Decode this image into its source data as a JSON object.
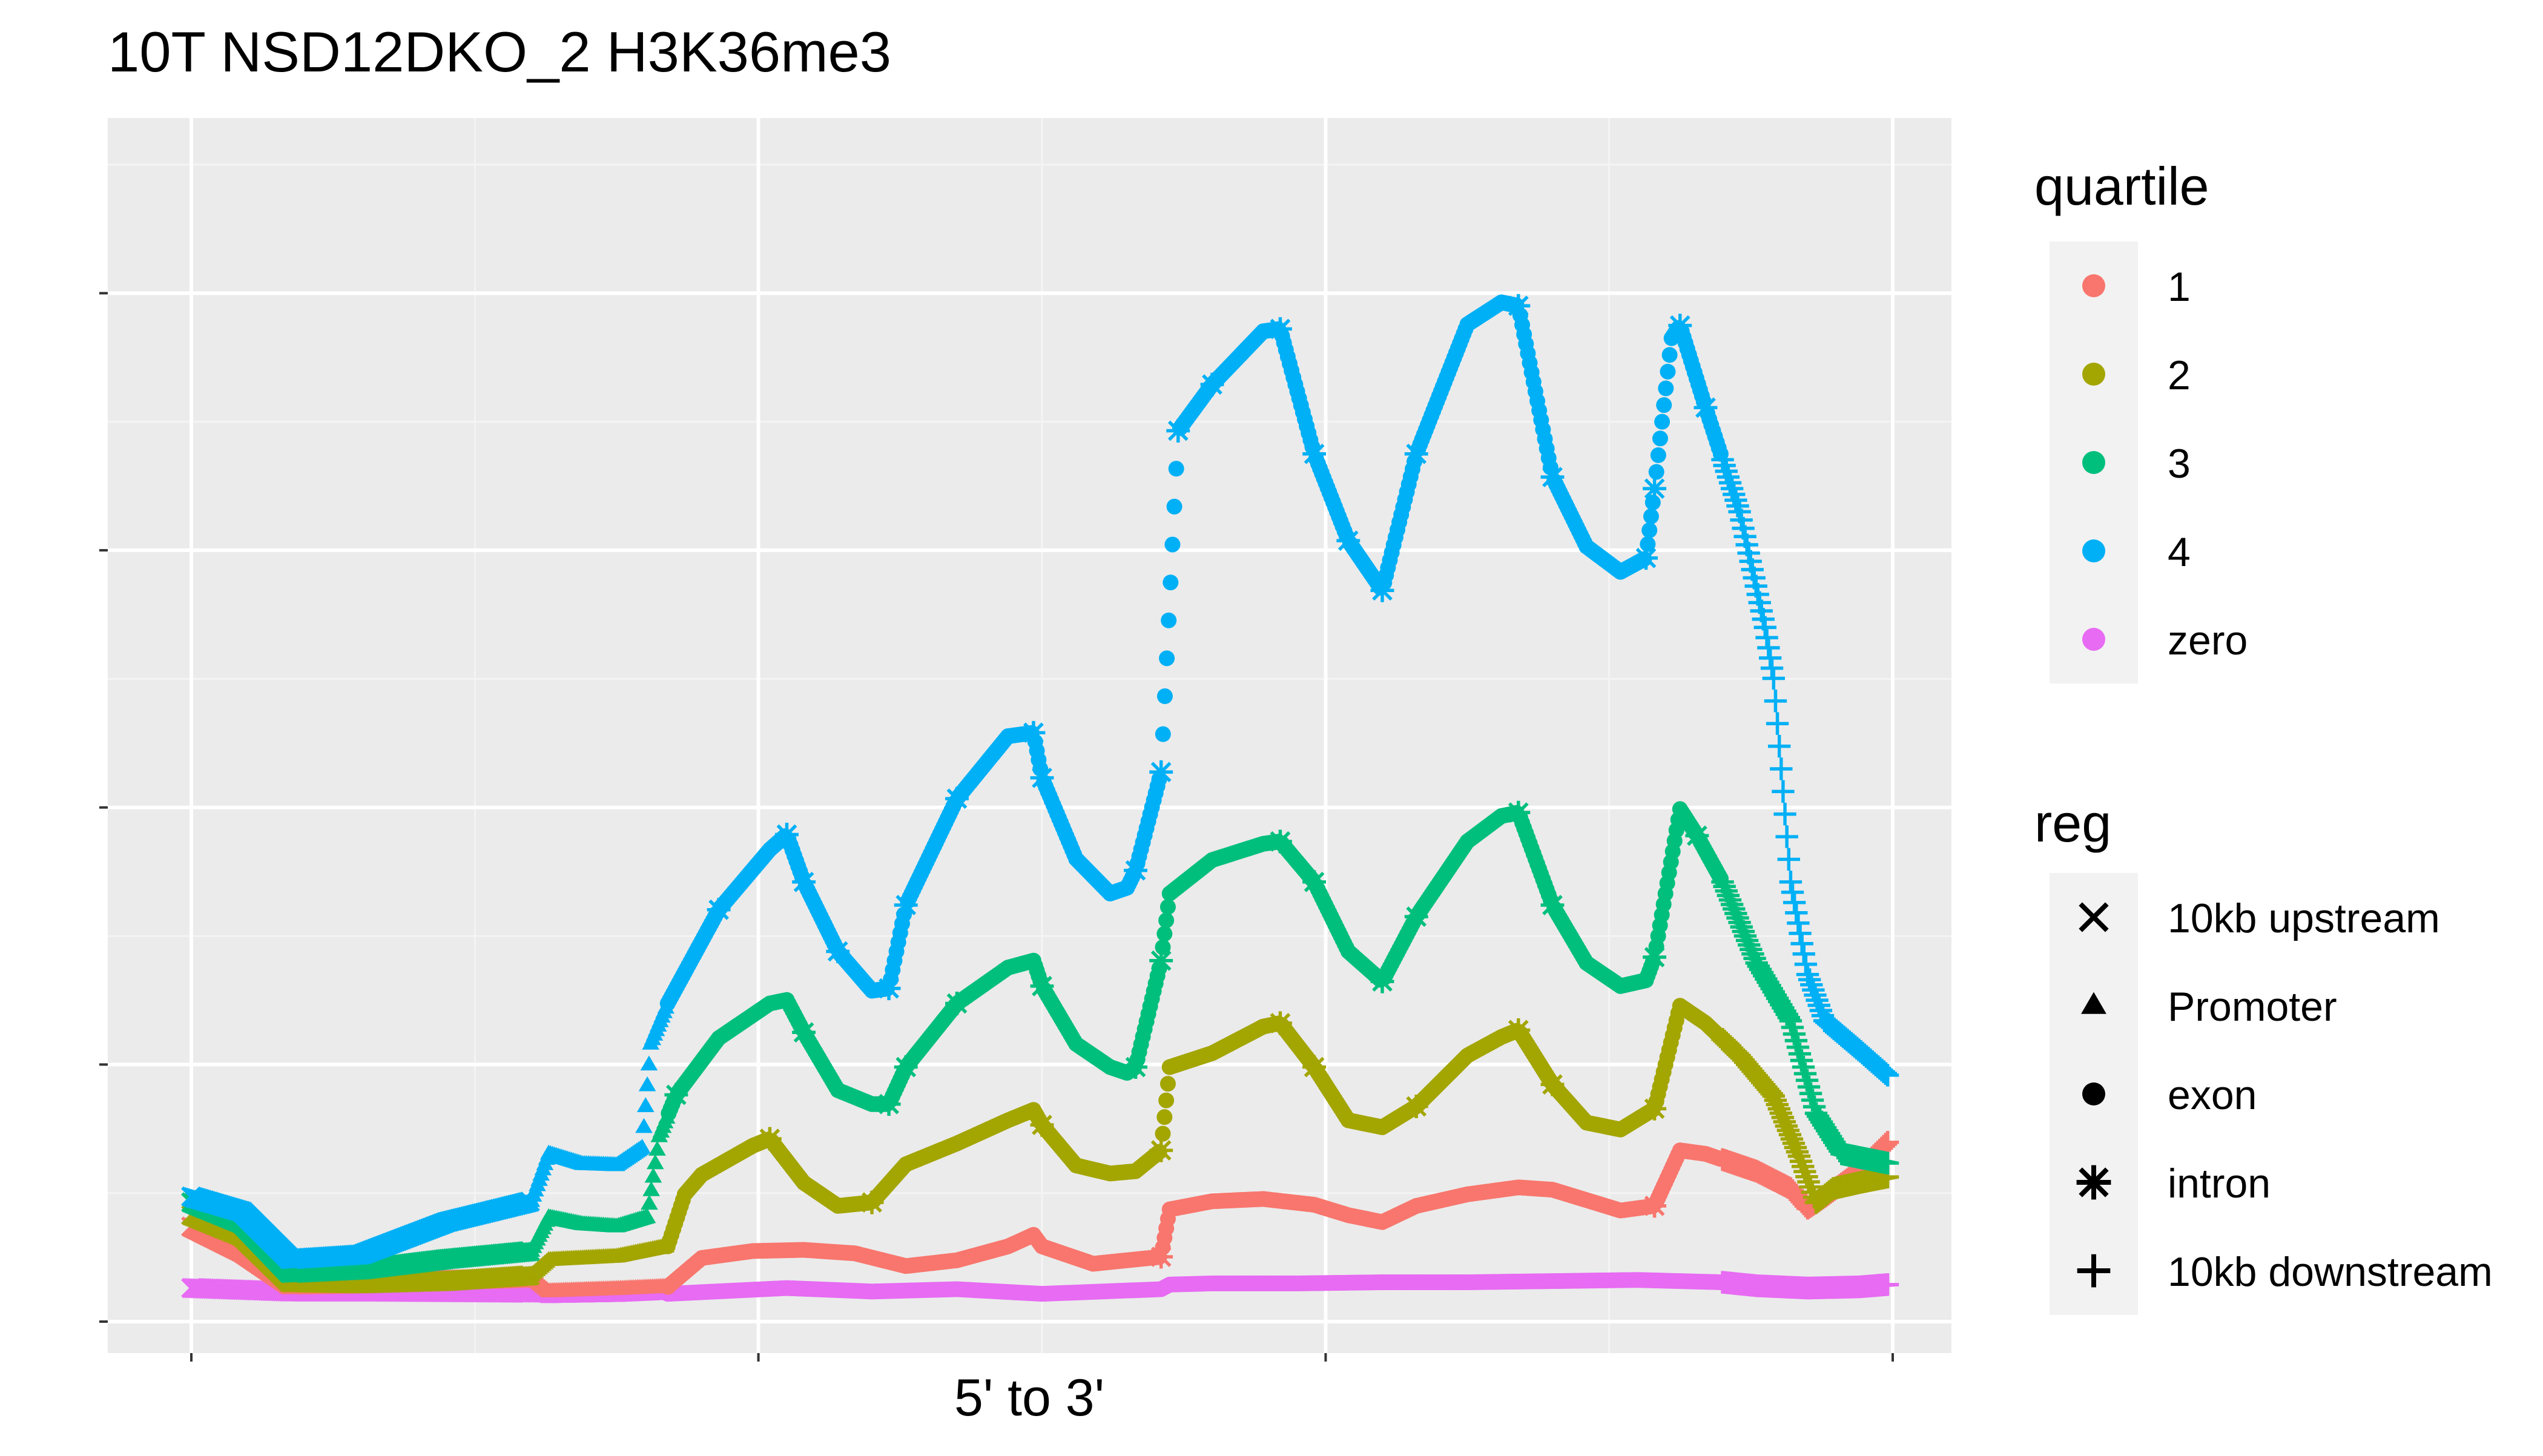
{
  "colors": {
    "panel": "#EBEBEB",
    "grid_major": "#FFFFFF",
    "grid_minor": "#F4F4F4",
    "legend_key": "#F2F2F2",
    "text": "#000000"
  },
  "chart_data": {
    "type": "scatter",
    "title": "10T NSD12DKO_2 H3K36me3",
    "subtitle": "",
    "xlabel": "5' to 3'",
    "ylabel": "",
    "x_tick_labels": [],
    "y_tick_labels": [],
    "xlim": [
      0,
      100
    ],
    "ylim": [
      0,
      100
    ],
    "grid": true,
    "legend_position": "right",
    "regions": [
      {
        "name": "10kb upstream",
        "shape": "x",
        "x_range": [
          0,
          20
        ]
      },
      {
        "name": "Promoter",
        "shape": "triangle",
        "x_range": [
          20,
          28
        ]
      },
      {
        "name": "exon",
        "shape": "circle",
        "x_range": [
          28,
          90
        ]
      },
      {
        "name": "intron",
        "shape": "asterisk",
        "x_range": [
          28,
          90
        ]
      },
      {
        "name": "10kb downstream",
        "shape": "plus",
        "x_range": [
          90,
          100
        ]
      }
    ],
    "series": [
      {
        "name": "1",
        "color": "#F8766D",
        "points": [
          [
            0,
            8.2
          ],
          [
            3,
            6
          ],
          [
            5.8,
            3.2
          ],
          [
            10,
            3.3
          ],
          [
            15,
            3.6
          ],
          [
            20,
            3.8
          ],
          [
            21,
            2.6
          ],
          [
            25,
            2.8
          ],
          [
            28,
            3
          ],
          [
            30,
            5.5
          ],
          [
            33,
            6.1
          ],
          [
            36,
            6.2
          ],
          [
            39,
            5.9
          ],
          [
            42,
            4.8
          ],
          [
            45,
            5.3
          ],
          [
            48,
            6.5
          ],
          [
            49.5,
            7.5
          ],
          [
            50,
            6.5
          ],
          [
            53,
            5
          ],
          [
            57,
            5.6
          ],
          [
            57.5,
            9.7
          ],
          [
            60,
            10.4
          ],
          [
            63,
            10.6
          ],
          [
            66,
            10.1
          ],
          [
            68,
            9.2
          ],
          [
            70,
            8.6
          ],
          [
            72,
            10
          ],
          [
            75,
            11
          ],
          [
            78,
            11.6
          ],
          [
            80,
            11.4
          ],
          [
            82,
            10.5
          ],
          [
            84,
            9.6
          ],
          [
            86,
            10
          ],
          [
            87.5,
            14.8
          ],
          [
            89,
            14.5
          ],
          [
            92,
            13
          ],
          [
            94,
            11.5
          ],
          [
            95,
            9.8
          ],
          [
            96,
            10.8
          ],
          [
            98,
            13
          ],
          [
            99.7,
            15.5
          ]
        ]
      },
      {
        "name": "2",
        "color": "#A3A500",
        "points": [
          [
            0,
            9.2
          ],
          [
            3,
            7.4
          ],
          [
            5.8,
            3.4
          ],
          [
            10,
            3.3
          ],
          [
            15,
            3.5
          ],
          [
            20,
            4
          ],
          [
            21,
            5.3
          ],
          [
            25,
            5.6
          ],
          [
            28,
            6.5
          ],
          [
            29,
            11
          ],
          [
            30,
            12.7
          ],
          [
            33,
            15.2
          ],
          [
            34,
            15.8
          ],
          [
            36,
            12
          ],
          [
            38,
            10
          ],
          [
            40,
            10.3
          ],
          [
            42,
            13.6
          ],
          [
            45,
            15.4
          ],
          [
            48,
            17.4
          ],
          [
            49.5,
            18.3
          ],
          [
            50,
            17
          ],
          [
            52,
            13.5
          ],
          [
            54,
            12.8
          ],
          [
            55.5,
            13
          ],
          [
            57,
            14.8
          ],
          [
            57.5,
            22
          ],
          [
            60,
            23.2
          ],
          [
            63,
            25.5
          ],
          [
            64,
            25.8
          ],
          [
            66,
            22
          ],
          [
            68,
            17.4
          ],
          [
            70,
            16.8
          ],
          [
            72,
            18.6
          ],
          [
            75,
            23
          ],
          [
            77,
            24.6
          ],
          [
            78,
            25.2
          ],
          [
            80,
            20.5
          ],
          [
            82,
            17.2
          ],
          [
            84,
            16.6
          ],
          [
            86,
            18.4
          ],
          [
            87.5,
            27.3
          ],
          [
            89,
            25.8
          ],
          [
            91,
            23
          ],
          [
            93,
            19.5
          ],
          [
            94.5,
            14.3
          ],
          [
            95.5,
            10.3
          ],
          [
            96.5,
            11.5
          ],
          [
            98,
            12
          ],
          [
            99.7,
            12.5
          ]
        ]
      },
      {
        "name": "3",
        "color": "#00BF7D",
        "points": [
          [
            0,
            10.3
          ],
          [
            3,
            8.5
          ],
          [
            5.8,
            4.2
          ],
          [
            10,
            4.5
          ],
          [
            15,
            5.4
          ],
          [
            20,
            6.1
          ],
          [
            21,
            9
          ],
          [
            23,
            8.4
          ],
          [
            25,
            8.2
          ],
          [
            26.8,
            9
          ],
          [
            27.5,
            16
          ],
          [
            28.5,
            19.6
          ],
          [
            31,
            24.5
          ],
          [
            34,
            27.5
          ],
          [
            35,
            27.8
          ],
          [
            36,
            25
          ],
          [
            38,
            20
          ],
          [
            40,
            18.8
          ],
          [
            41,
            18.8
          ],
          [
            42,
            22
          ],
          [
            45,
            27.5
          ],
          [
            48,
            30.6
          ],
          [
            49.5,
            31.2
          ],
          [
            50,
            29
          ],
          [
            52,
            24
          ],
          [
            54,
            22
          ],
          [
            55,
            21.5
          ],
          [
            55.5,
            22
          ],
          [
            57,
            31.2
          ],
          [
            57.5,
            37
          ],
          [
            60,
            39.9
          ],
          [
            63,
            41.3
          ],
          [
            64,
            41.5
          ],
          [
            66,
            38
          ],
          [
            68,
            32
          ],
          [
            70,
            29.4
          ],
          [
            72,
            35
          ],
          [
            75,
            41.5
          ],
          [
            77,
            43.7
          ],
          [
            78,
            44
          ],
          [
            80,
            36
          ],
          [
            82,
            31
          ],
          [
            84,
            29
          ],
          [
            85.5,
            29.5
          ],
          [
            86,
            31.5
          ],
          [
            87.5,
            44.3
          ],
          [
            88.5,
            42
          ],
          [
            90,
            38
          ],
          [
            92,
            31
          ],
          [
            94,
            26
          ],
          [
            95.5,
            18
          ],
          [
            97,
            14.5
          ],
          [
            99.7,
            13.7
          ]
        ]
      },
      {
        "name": "4",
        "color": "#00B0F6",
        "points": [
          [
            0,
            10.8
          ],
          [
            3,
            9.5
          ],
          [
            5.8,
            5.4
          ],
          [
            10,
            5.8
          ],
          [
            15,
            8.6
          ],
          [
            20,
            10.4
          ],
          [
            21,
            14.5
          ],
          [
            23,
            13.6
          ],
          [
            25,
            13.5
          ],
          [
            26.5,
            15
          ],
          [
            27,
            24
          ],
          [
            28,
            27.5
          ],
          [
            31,
            35.6
          ],
          [
            34,
            40.8
          ],
          [
            35,
            42.1
          ],
          [
            36,
            38
          ],
          [
            38,
            32
          ],
          [
            40,
            28.6
          ],
          [
            41,
            28.8
          ],
          [
            42,
            36
          ],
          [
            45,
            45.2
          ],
          [
            48,
            50.6
          ],
          [
            49.5,
            50.9
          ],
          [
            50,
            47
          ],
          [
            52,
            40
          ],
          [
            54,
            37
          ],
          [
            55,
            37.5
          ],
          [
            55.5,
            39
          ],
          [
            57,
            47.5
          ],
          [
            58,
            77
          ],
          [
            60,
            81
          ],
          [
            63,
            85.6
          ],
          [
            64,
            85.8
          ],
          [
            66,
            75
          ],
          [
            68,
            67.5
          ],
          [
            70,
            63.2
          ],
          [
            72,
            75
          ],
          [
            75,
            86.2
          ],
          [
            77,
            88.1
          ],
          [
            78,
            87.8
          ],
          [
            80,
            73
          ],
          [
            82,
            67
          ],
          [
            84,
            64.8
          ],
          [
            85.5,
            66
          ],
          [
            86,
            72
          ],
          [
            87,
            85
          ],
          [
            87.5,
            86.1
          ],
          [
            89,
            79
          ],
          [
            91,
            70
          ],
          [
            92.5,
            60
          ],
          [
            93,
            55.6
          ],
          [
            94,
            38
          ],
          [
            95,
            30
          ],
          [
            96,
            26
          ],
          [
            98,
            23.5
          ],
          [
            99.7,
            21.3
          ]
        ]
      },
      {
        "name": "zero",
        "color": "#E76BF3",
        "points": [
          [
            0,
            2.9
          ],
          [
            5.8,
            2.6
          ],
          [
            10,
            2.6
          ],
          [
            20,
            2.5
          ],
          [
            21,
            2.1
          ],
          [
            25,
            2.2
          ],
          [
            28,
            2.4
          ],
          [
            35,
            2.9
          ],
          [
            40,
            2.6
          ],
          [
            45,
            2.8
          ],
          [
            50,
            2.4
          ],
          [
            57,
            2.8
          ],
          [
            57.5,
            3.2
          ],
          [
            60,
            3.3
          ],
          [
            65,
            3.3
          ],
          [
            70,
            3.4
          ],
          [
            75,
            3.4
          ],
          [
            80,
            3.5
          ],
          [
            85,
            3.6
          ],
          [
            90,
            3.4
          ],
          [
            92,
            3.1
          ],
          [
            95,
            2.9
          ],
          [
            98,
            3
          ],
          [
            99.7,
            3.2
          ]
        ]
      }
    ]
  },
  "legend_quartile": {
    "title": "quartile",
    "items": [
      {
        "label": "1",
        "color": "#F8766D"
      },
      {
        "label": "2",
        "color": "#A3A500"
      },
      {
        "label": "3",
        "color": "#00BF7D"
      },
      {
        "label": "4",
        "color": "#00B0F6"
      },
      {
        "label": "zero",
        "color": "#E76BF3"
      }
    ]
  },
  "legend_reg": {
    "title": "reg",
    "items": [
      {
        "label": "10kb upstream",
        "shape": "x"
      },
      {
        "label": "Promoter",
        "shape": "triangle"
      },
      {
        "label": "exon",
        "shape": "circle"
      },
      {
        "label": "intron",
        "shape": "asterisk"
      },
      {
        "label": "10kb downstream",
        "shape": "plus"
      }
    ]
  }
}
